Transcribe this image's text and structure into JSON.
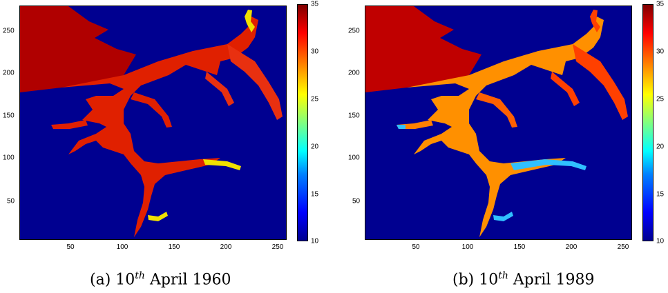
{
  "chart_data": [
    {
      "type": "heatmap",
      "caption": {
        "prefix": "(a) 10",
        "sup": "th",
        "suffix": "April 1960"
      },
      "x_ticks": [
        50,
        100,
        150,
        200,
        250
      ],
      "y_ticks": [
        50,
        100,
        150,
        200,
        250
      ],
      "xlim": [
        1,
        260
      ],
      "ylim": [
        1,
        283
      ],
      "colorbar": {
        "ticks": [
          10,
          15,
          20,
          25,
          30,
          35
        ],
        "range": [
          10,
          35
        ],
        "colormap": "jet"
      },
      "background_value": 10,
      "channel_values": {
        "seaward": 34,
        "main": 32,
        "upper": 31,
        "heads": 26
      }
    },
    {
      "type": "heatmap",
      "caption": {
        "prefix": "(b) 10",
        "sup": "th",
        "suffix": "April 1989"
      },
      "x_ticks": [
        50,
        100,
        150,
        200,
        250
      ],
      "y_ticks": [
        50,
        100,
        150,
        200,
        250
      ],
      "xlim": [
        1,
        260
      ],
      "ylim": [
        1,
        283
      ],
      "colorbar": {
        "ticks": [
          10,
          15,
          20,
          25,
          30,
          35
        ],
        "range": [
          10,
          35
        ],
        "colormap": "jet"
      },
      "background_value": 10,
      "channel_values": {
        "seaward": 33,
        "main": 28,
        "upper": 30,
        "heads": 17
      }
    }
  ],
  "colors": {
    "background": "#000090",
    "seaward_a": "#b00000",
    "main_a": "#e02000",
    "upper_a": "#e83010",
    "heads_a": "#f0e000",
    "seaward_b": "#c00000",
    "main_b": "#ff9000",
    "upper_b": "#ff4000",
    "heads_b": "#30c0ff"
  }
}
